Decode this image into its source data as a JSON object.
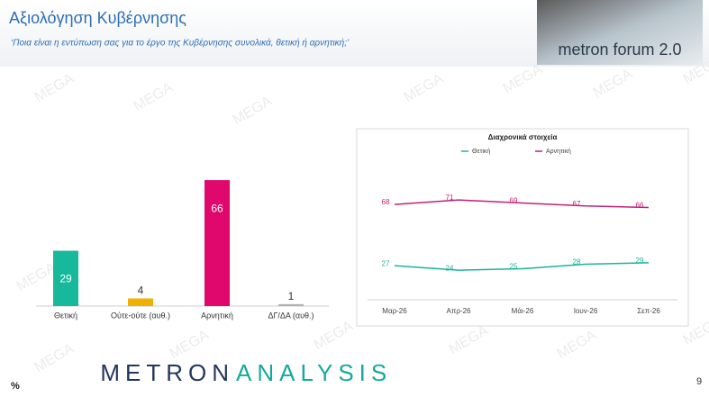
{
  "header": {
    "title": "Αξιολόγηση Κυβέρνησης",
    "subtitle": "‘Ποια είναι η εντύπωση σας για το έργο της Κυβέρνησης συνολικά, θετική ή αρνητική;’",
    "logo": "metron forum 2.0"
  },
  "watermark": "MEGA",
  "chart_data": [
    {
      "type": "bar",
      "categories": [
        "Θετική",
        "Ούτε-ούτε (αυθ.)",
        "Αρνητική",
        "ΔΓ/ΔΑ (αυθ.)"
      ],
      "values": [
        29,
        4,
        66,
        1
      ],
      "colors": [
        "#17b89c",
        "#f0b000",
        "#e0086c",
        "#b0b0b0"
      ]
    },
    {
      "type": "line",
      "title": "Διαχρονικά στοιχεία",
      "categories": [
        "Μαρ-26",
        "Απρ-26",
        "Μάι-26",
        "Ιουν-26",
        "Σεπ-26"
      ],
      "series": [
        {
          "name": "Θετική",
          "color": "#1ab39c",
          "values": [
            27,
            24,
            25,
            28,
            29
          ]
        },
        {
          "name": "Αρνητική",
          "color": "#c2207a",
          "values": [
            68,
            71,
            69,
            67,
            66
          ]
        }
      ]
    }
  ],
  "footer": {
    "brand_a": "METRON",
    "brand_b": "ANALYSIS",
    "unit": "%",
    "page": "9"
  }
}
